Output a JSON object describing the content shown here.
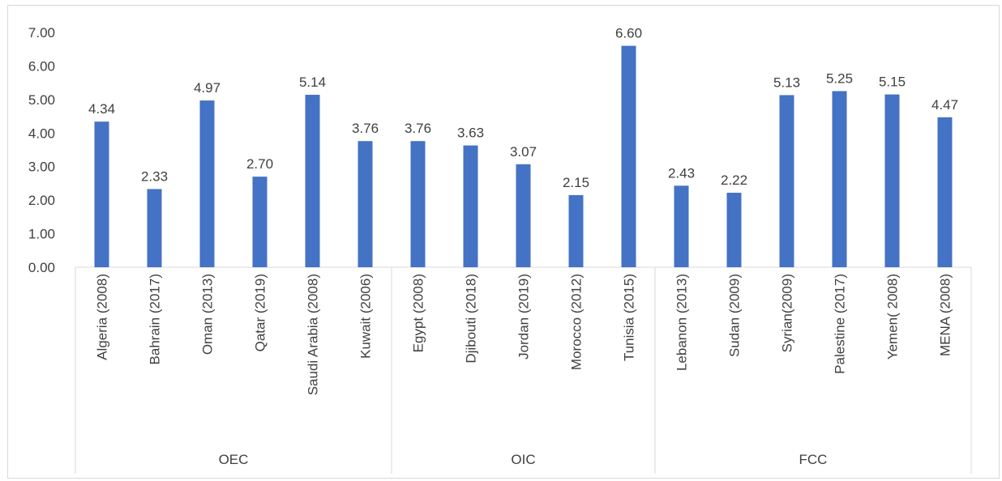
{
  "chart_data": {
    "type": "bar",
    "title": "",
    "xlabel": "",
    "ylabel": "",
    "ylim": [
      0,
      7
    ],
    "y_ticks": [
      "0.00",
      "1.00",
      "2.00",
      "3.00",
      "4.00",
      "5.00",
      "6.00",
      "7.00"
    ],
    "grid": false,
    "legend": "none",
    "bar_color": "#4472c4",
    "groups": [
      {
        "name": "OEC",
        "categories": [
          "Algeria (2008)",
          "Bahrain (2017)",
          "Oman (2013)",
          "Qatar (2019)",
          "Saudi Arabia (2008)",
          "Kuwait (2006)"
        ],
        "values": [
          4.34,
          2.33,
          4.97,
          2.7,
          5.14,
          3.76
        ],
        "labels": [
          "4.34",
          "2.33",
          "4.97",
          "2.70",
          "5.14",
          "3.76"
        ]
      },
      {
        "name": "OIC",
        "categories": [
          "Egypt (2008)",
          "Djibouti (2018)",
          "Jordan (2019)",
          "Morocco (2012)",
          "Tunisia (2015)"
        ],
        "values": [
          3.76,
          3.63,
          3.07,
          2.15,
          6.6
        ],
        "labels": [
          "3.76",
          "3.63",
          "3.07",
          "2.15",
          "6.60"
        ]
      },
      {
        "name": "FCC",
        "categories": [
          "Lebanon (2013)",
          "Sudan (2009)",
          "Syrian(2009)",
          "Palestine (2017)",
          "Yemen( 2008)",
          "MENA (2008)"
        ],
        "values": [
          2.43,
          2.22,
          5.13,
          5.25,
          5.15,
          4.47
        ],
        "labels": [
          "2.43",
          "2.22",
          "5.13",
          "5.25",
          "5.15",
          "4.47"
        ]
      }
    ]
  }
}
